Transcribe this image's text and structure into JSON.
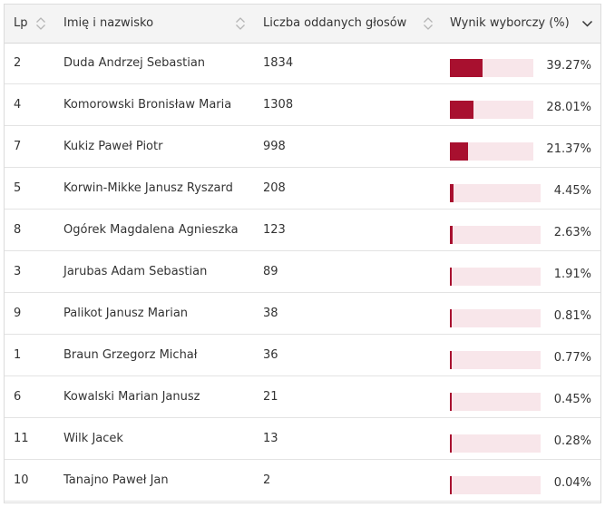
{
  "colors": {
    "accent": "#a8102f",
    "track": "#f8e6ea",
    "header_bg": "#f4f4f4"
  },
  "header": {
    "lp": "Lp",
    "name": "Imię i nazwisko",
    "votes": "Liczba oddanych głosów",
    "result": "Wynik wyborczy (%)"
  },
  "rows": [
    {
      "lp": "2",
      "name": "Duda Andrzej Sebastian",
      "votes": "1834",
      "percent": "39.27%",
      "value": 39.27
    },
    {
      "lp": "4",
      "name": "Komorowski Bronisław Maria",
      "votes": "1308",
      "percent": "28.01%",
      "value": 28.01
    },
    {
      "lp": "7",
      "name": "Kukiz Paweł Piotr",
      "votes": "998",
      "percent": "21.37%",
      "value": 21.37
    },
    {
      "lp": "5",
      "name": "Korwin-Mikke Janusz Ryszard",
      "votes": "208",
      "percent": "4.45%",
      "value": 4.45
    },
    {
      "lp": "8",
      "name": "Ogórek Magdalena Agnieszka",
      "votes": "123",
      "percent": "2.63%",
      "value": 2.63
    },
    {
      "lp": "3",
      "name": "Jarubas Adam Sebastian",
      "votes": "89",
      "percent": "1.91%",
      "value": 1.91
    },
    {
      "lp": "9",
      "name": "Palikot Janusz Marian",
      "votes": "38",
      "percent": "0.81%",
      "value": 0.81
    },
    {
      "lp": "1",
      "name": "Braun Grzegorz Michał",
      "votes": "36",
      "percent": "0.77%",
      "value": 0.77
    },
    {
      "lp": "6",
      "name": "Kowalski Marian Janusz",
      "votes": "21",
      "percent": "0.45%",
      "value": 0.45
    },
    {
      "lp": "11",
      "name": "Wilk Jacek",
      "votes": "13",
      "percent": "0.28%",
      "value": 0.28
    },
    {
      "lp": "10",
      "name": "Tanajno Paweł Jan",
      "votes": "2",
      "percent": "0.04%",
      "value": 0.04
    }
  ]
}
